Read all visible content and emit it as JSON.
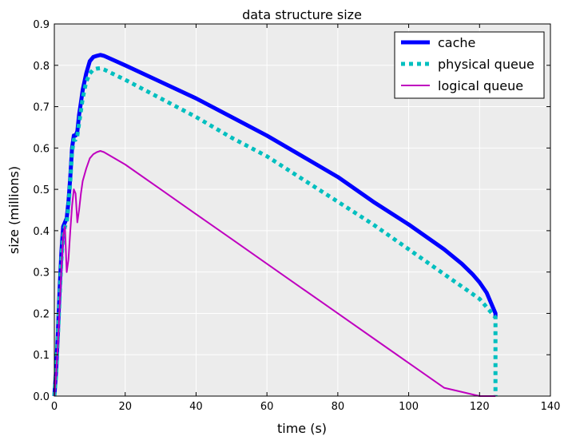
{
  "chart_data": {
    "type": "line",
    "title": "data structure size",
    "xlabel": "time (s)",
    "ylabel": "size (millions)",
    "xlim": [
      0,
      140
    ],
    "ylim": [
      0,
      0.9
    ],
    "xticks": [
      0,
      20,
      40,
      60,
      80,
      100,
      120,
      140
    ],
    "yticks": [
      0.0,
      0.1,
      0.2,
      0.3,
      0.4,
      0.5,
      0.6,
      0.7,
      0.8,
      0.9
    ],
    "xtick_labels": [
      "0",
      "20",
      "40",
      "60",
      "80",
      "100",
      "120",
      "140"
    ],
    "ytick_labels": [
      "0.0",
      "0.1",
      "0.2",
      "0.3",
      "0.4",
      "0.5",
      "0.6",
      "0.7",
      "0.8",
      "0.9"
    ],
    "grid": true,
    "background": "#ececec",
    "legend_position": "top-right",
    "series": [
      {
        "name": "cache",
        "color": "#0000ff",
        "style": "solid-thick",
        "x": [
          0,
          0.5,
          1,
          1.5,
          2,
          2.5,
          3,
          3.5,
          4,
          4.5,
          5,
          5.5,
          6,
          6.5,
          7,
          7.5,
          8,
          9,
          10,
          11,
          12,
          13,
          14,
          20,
          30,
          40,
          50,
          60,
          70,
          80,
          90,
          100,
          110,
          115,
          118,
          120,
          122,
          123.5,
          124.5,
          124.5
        ],
        "y": [
          0.0,
          0.06,
          0.15,
          0.26,
          0.35,
          0.41,
          0.42,
          0.43,
          0.47,
          0.53,
          0.6,
          0.63,
          0.63,
          0.64,
          0.68,
          0.71,
          0.74,
          0.78,
          0.81,
          0.82,
          0.823,
          0.825,
          0.823,
          0.8,
          0.76,
          0.72,
          0.675,
          0.63,
          0.58,
          0.53,
          0.47,
          0.415,
          0.355,
          0.32,
          0.295,
          0.275,
          0.25,
          0.22,
          0.2,
          0.19
        ]
      },
      {
        "name": "physical queue",
        "color": "#00bfbf",
        "style": "dashed-thick",
        "x": [
          0,
          0.5,
          1,
          1.5,
          2,
          2.5,
          3,
          3.5,
          4,
          4.5,
          5,
          5.5,
          6,
          6.5,
          7,
          7.5,
          8,
          9,
          10,
          11,
          12,
          13,
          14,
          20,
          30,
          40,
          50,
          60,
          70,
          80,
          90,
          100,
          110,
          115,
          120,
          123.5,
          124.5,
          124.5
        ],
        "y": [
          0.0,
          0.05,
          0.14,
          0.24,
          0.33,
          0.39,
          0.41,
          0.42,
          0.46,
          0.52,
          0.59,
          0.62,
          0.62,
          0.63,
          0.66,
          0.69,
          0.72,
          0.76,
          0.78,
          0.79,
          0.792,
          0.793,
          0.79,
          0.765,
          0.72,
          0.675,
          0.625,
          0.58,
          0.525,
          0.47,
          0.415,
          0.355,
          0.295,
          0.265,
          0.235,
          0.2,
          0.19,
          0.0
        ]
      },
      {
        "name": "logical queue",
        "color": "#bf00bf",
        "style": "solid-thin",
        "x": [
          0,
          0.5,
          1,
          1.5,
          2,
          2.5,
          3,
          3.5,
          4,
          4.5,
          5,
          5.5,
          6,
          6.5,
          7,
          7.5,
          8,
          9,
          10,
          11,
          12,
          13,
          14,
          20,
          30,
          40,
          50,
          60,
          70,
          80,
          90,
          100,
          110,
          120,
          124.5
        ],
        "y": [
          0.0,
          0.05,
          0.12,
          0.22,
          0.31,
          0.39,
          0.41,
          0.3,
          0.33,
          0.4,
          0.46,
          0.5,
          0.49,
          0.42,
          0.45,
          0.49,
          0.52,
          0.55,
          0.575,
          0.585,
          0.59,
          0.593,
          0.59,
          0.56,
          0.5,
          0.44,
          0.38,
          0.32,
          0.26,
          0.2,
          0.14,
          0.08,
          0.02,
          -0.04,
          0.0
        ]
      }
    ]
  }
}
